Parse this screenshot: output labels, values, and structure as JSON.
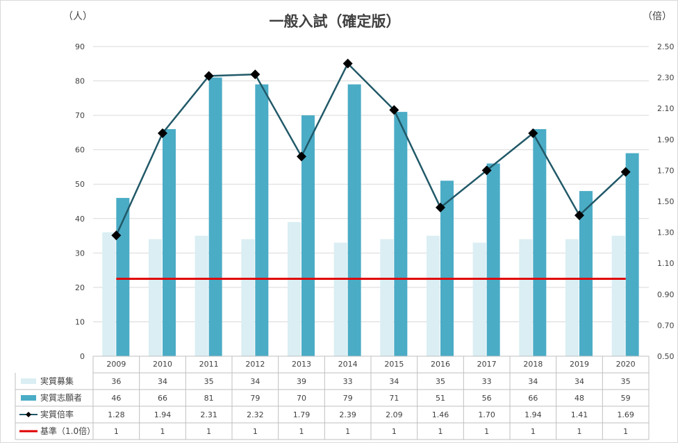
{
  "chart_data": {
    "type": "bar",
    "title": "一般入試（確定版）",
    "y_left_unit": "（人）",
    "y_right_unit": "（倍）",
    "ylim_left": [
      0,
      90
    ],
    "ylim_right": [
      0.5,
      2.5
    ],
    "yticks_left": [
      "0",
      "10",
      "20",
      "30",
      "40",
      "50",
      "60",
      "70",
      "80",
      "90"
    ],
    "yticks_right": [
      "0.50",
      "0.70",
      "0.90",
      "1.10",
      "1.30",
      "1.50",
      "1.70",
      "1.90",
      "2.10",
      "2.30",
      "2.50"
    ],
    "categories": [
      "2009",
      "2010",
      "2011",
      "2012",
      "2013",
      "2014",
      "2015",
      "2016",
      "2017",
      "2018",
      "2019",
      "2020"
    ],
    "grid": true,
    "legend_placement": "data-table",
    "series": [
      {
        "name": "実質募集",
        "kind": "bar",
        "axis": "left",
        "color": "#daeef3",
        "values": [
          36,
          34,
          35,
          34,
          39,
          33,
          34,
          35,
          33,
          34,
          34,
          35
        ],
        "labels": [
          "36",
          "34",
          "35",
          "34",
          "39",
          "33",
          "34",
          "35",
          "33",
          "34",
          "34",
          "35"
        ]
      },
      {
        "name": "実質志願者",
        "kind": "bar",
        "axis": "left",
        "color": "#4bacc6",
        "values": [
          46,
          66,
          81,
          79,
          70,
          79,
          71,
          51,
          56,
          66,
          48,
          59
        ],
        "labels": [
          "46",
          "66",
          "81",
          "79",
          "70",
          "79",
          "71",
          "51",
          "56",
          "66",
          "48",
          "59"
        ]
      },
      {
        "name": "実質倍率",
        "kind": "line",
        "axis": "right",
        "color": "#215968",
        "marker_color": "#000000",
        "values": [
          1.28,
          1.94,
          2.31,
          2.32,
          1.79,
          2.39,
          2.09,
          1.46,
          1.7,
          1.94,
          1.41,
          1.69
        ],
        "labels": [
          "1.28",
          "1.94",
          "2.31",
          "2.32",
          "1.79",
          "2.39",
          "2.09",
          "1.46",
          "1.70",
          "1.94",
          "1.41",
          "1.69"
        ]
      },
      {
        "name": "基準（1.0倍）",
        "kind": "line",
        "axis": "right",
        "color": "#e00000",
        "values": [
          1,
          1,
          1,
          1,
          1,
          1,
          1,
          1,
          1,
          1,
          1,
          1
        ],
        "labels": [
          "1",
          "1",
          "1",
          "1",
          "1",
          "1",
          "1",
          "1",
          "1",
          "1",
          "1",
          "1"
        ]
      }
    ]
  }
}
